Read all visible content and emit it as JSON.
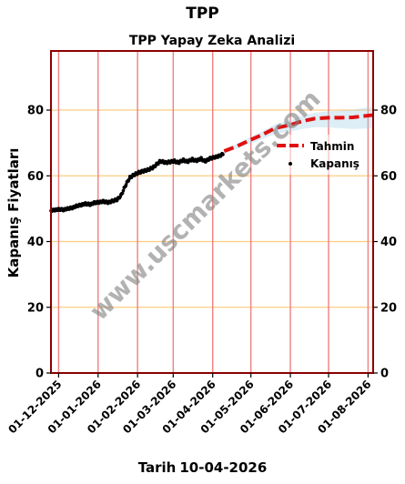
{
  "page": {
    "suptitle": "TPP",
    "footer_label": "Tarih",
    "footer_date": "10-04-2026",
    "watermark": "www.uscmarkets.com"
  },
  "colors": {
    "frame": "#8b0000",
    "hgrid": "#ffcc80",
    "vgrid": "#f08080",
    "forecast": "#e01010",
    "actual": "#000000",
    "fit": "#b030b0",
    "band": "#9ecfe8",
    "watermark": "#808080"
  },
  "chart_data": {
    "type": "line",
    "title": "TPP Yapay Zeka Analizi",
    "ylabel": "Kapanış Fiyatları",
    "xlabel": "",
    "ylim": [
      0,
      98
    ],
    "xlim": [
      "2025-11-25",
      "2026-08-05"
    ],
    "yticks": [
      0,
      20,
      40,
      60,
      80
    ],
    "xticks": [
      "01-12-2025",
      "01-01-2026",
      "01-02-2026",
      "01-03-2026",
      "01-04-2026",
      "01-05-2026",
      "01-06-2026",
      "01-07-2026",
      "01-08-2026"
    ],
    "xtick_dates": [
      "2025-12-01",
      "2026-01-01",
      "2026-02-01",
      "2026-03-01",
      "2026-04-01",
      "2026-05-01",
      "2026-06-01",
      "2026-07-01",
      "2026-08-01"
    ],
    "grid": true,
    "legend_position": "right",
    "series": [
      {
        "name": "Tahmin",
        "style": "dashed",
        "points": [
          [
            "2026-04-10",
            67.5
          ],
          [
            "2026-04-20",
            69.0
          ],
          [
            "2026-05-01",
            71.0
          ],
          [
            "2026-05-10",
            72.5
          ],
          [
            "2026-05-20",
            74.5
          ],
          [
            "2026-06-01",
            75.5
          ],
          [
            "2026-06-10",
            76.6
          ],
          [
            "2026-06-20",
            77.4
          ],
          [
            "2026-07-01",
            77.7
          ],
          [
            "2026-07-10",
            77.7
          ],
          [
            "2026-07-20",
            77.8
          ],
          [
            "2026-08-05",
            78.5
          ]
        ]
      },
      {
        "name": "Kapanış",
        "style": "markers",
        "points": [
          [
            "2025-11-25",
            49.5
          ],
          [
            "2025-11-28",
            49.6
          ],
          [
            "2025-12-01",
            49.8
          ],
          [
            "2025-12-05",
            49.7
          ],
          [
            "2025-12-08",
            50.0
          ],
          [
            "2025-12-12",
            50.3
          ],
          [
            "2025-12-15",
            50.8
          ],
          [
            "2025-12-19",
            51.2
          ],
          [
            "2025-12-22",
            51.5
          ],
          [
            "2025-12-26",
            51.3
          ],
          [
            "2025-12-29",
            51.8
          ],
          [
            "2026-01-02",
            52.0
          ],
          [
            "2026-01-05",
            52.2
          ],
          [
            "2026-01-09",
            51.9
          ],
          [
            "2026-01-12",
            52.3
          ],
          [
            "2026-01-16",
            52.8
          ],
          [
            "2026-01-19",
            54.0
          ],
          [
            "2026-01-23",
            57.5
          ],
          [
            "2026-01-26",
            59.5
          ],
          [
            "2026-01-30",
            60.5
          ],
          [
            "2026-02-02",
            61.0
          ],
          [
            "2026-02-06",
            61.5
          ],
          [
            "2026-02-09",
            61.8
          ],
          [
            "2026-02-13",
            62.5
          ],
          [
            "2026-02-16",
            63.5
          ],
          [
            "2026-02-19",
            64.5
          ],
          [
            "2026-02-23",
            64.0
          ],
          [
            "2026-02-26",
            64.2
          ],
          [
            "2026-03-02",
            64.5
          ],
          [
            "2026-03-05",
            64.0
          ],
          [
            "2026-03-09",
            64.8
          ],
          [
            "2026-03-12",
            64.3
          ],
          [
            "2026-03-16",
            65.0
          ],
          [
            "2026-03-19",
            64.6
          ],
          [
            "2026-03-23",
            65.2
          ],
          [
            "2026-03-26",
            64.4
          ],
          [
            "2026-03-30",
            65.3
          ],
          [
            "2026-04-02",
            65.6
          ],
          [
            "2026-04-06",
            66.0
          ],
          [
            "2026-04-09",
            66.6
          ]
        ]
      }
    ]
  }
}
